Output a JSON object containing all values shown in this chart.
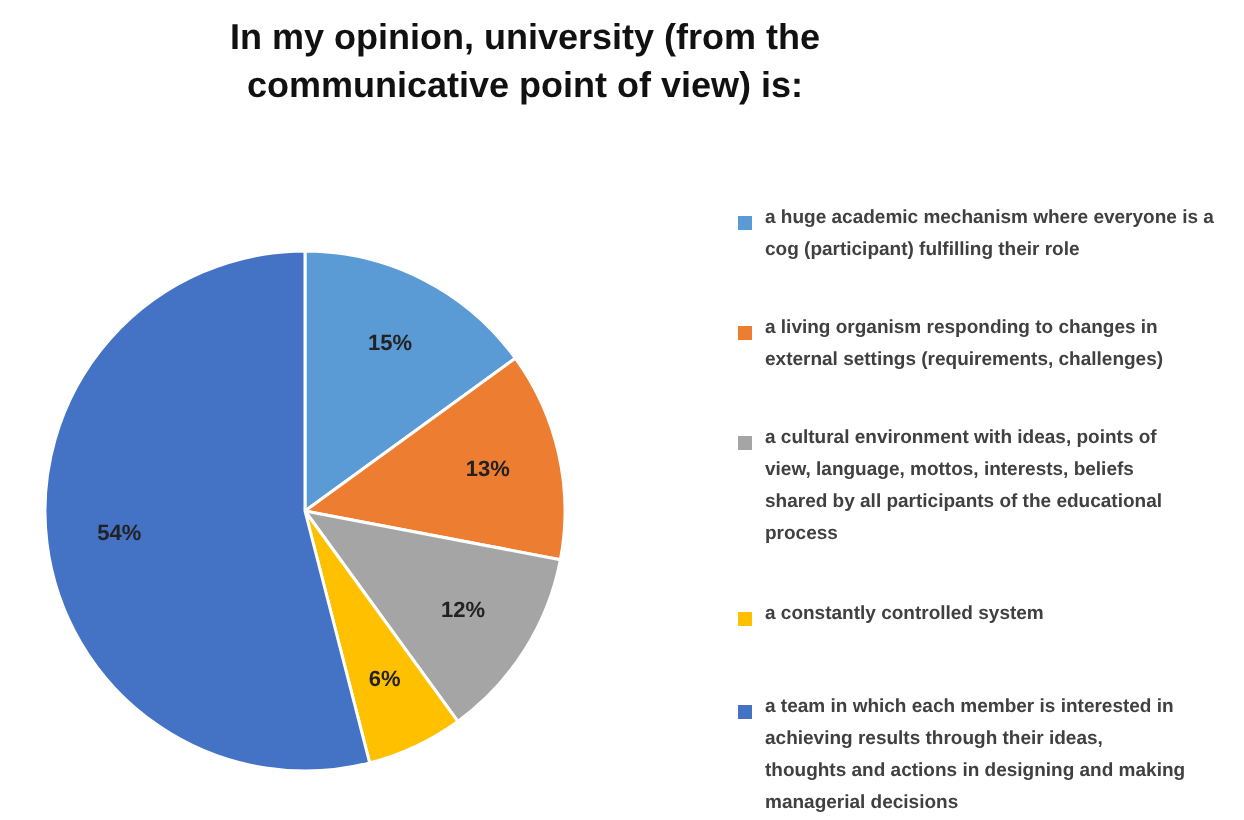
{
  "chart_data": {
    "type": "pie",
    "title": "In my opinion, university (from the communicative point of view) is:",
    "categories": [
      "a huge academic mechanism where everyone is a cog (participant) fulfilling their role",
      "a living organism responding to changes in external settings (requirements, challenges)",
      "a cultural environment with ideas, points of view, language, mottos, interests, beliefs shared by all participants of the educational process",
      "a constantly controlled system",
      "a team in which each member is interested in achieving results through their ideas, thoughts and actions in designing and making managerial decisions"
    ],
    "values": [
      15,
      13,
      12,
      6,
      54
    ],
    "colors": [
      "#5b9bd5",
      "#ed7d31",
      "#a5a5a5",
      "#ffc000",
      "#4472c4"
    ],
    "value_labels": [
      "15%",
      "13%",
      "12%",
      "6%",
      "54%"
    ],
    "legend": "right"
  }
}
